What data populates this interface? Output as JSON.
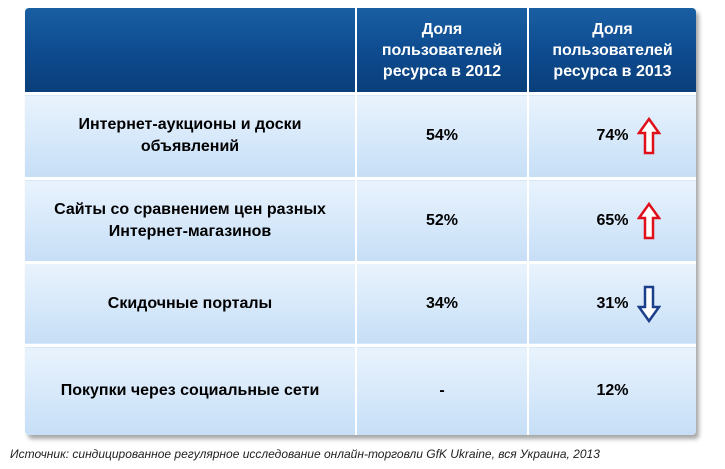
{
  "colors": {
    "header_bg": "#0d4a8e",
    "cell_bg": "#d4e7fa",
    "arrow_up": "#e0101a",
    "arrow_down": "#1c3f8c"
  },
  "table": {
    "headers": [
      "",
      "Доля пользователей ресурса в 2012",
      "Доля пользователей ресурса в 2013"
    ],
    "rows": [
      {
        "label": "Интернет-аукционы и доски объявлений",
        "v2012": "54%",
        "v2013": "74%",
        "trend_icon": "arrow-up-icon"
      },
      {
        "label": "Сайты со сравнением цен разных Интернет-магазинов",
        "v2012": "52%",
        "v2013": "65%",
        "trend_icon": "arrow-up-icon"
      },
      {
        "label": "Скидочные порталы",
        "v2012": "34%",
        "v2013": "31%",
        "trend_icon": "arrow-down-icon"
      },
      {
        "label": "Покупки через социальные сети",
        "v2012": "-",
        "v2013": "12%",
        "trend_icon": ""
      }
    ]
  },
  "chart_data": {
    "type": "table",
    "columns": [
      "",
      "Доля пользователей ресурса в 2012",
      "Доля пользователей ресурса в 2013"
    ],
    "categories": [
      "Интернет-аукционы и доски объявлений",
      "Сайты со сравнением цен разных Интернет-магазинов",
      "Скидочные порталы",
      "Покупки через социальные сети"
    ],
    "series": [
      {
        "name": "Доля пользователей ресурса в 2012",
        "values": [
          54,
          52,
          34,
          null
        ]
      },
      {
        "name": "Доля пользователей ресурса в 2013",
        "values": [
          74,
          65,
          31,
          12
        ]
      }
    ],
    "trend": [
      "up",
      "up",
      "down",
      "none"
    ]
  },
  "source": "Источник: синдицированное регулярное исследование онлайн-торговли GfK Ukraine, вся Украина, 2013"
}
